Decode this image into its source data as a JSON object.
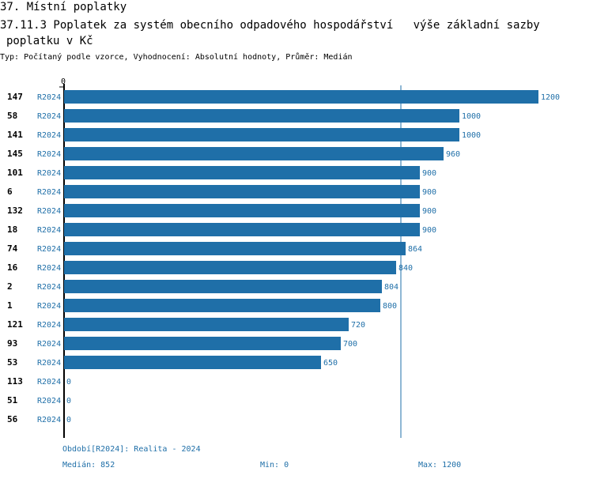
{
  "title_line1": "37. Místní poplatky",
  "title_line2": "37.11.3 Poplatek za systém obecního odpadového hospodářství   výše základní sazby",
  "title_line3": "poplatku v Kč",
  "subtitle": "Typ: Počítaný podle vzorce, Vyhodnocení: Absolutní hodnoty, Průměr: Medián",
  "chart_data": {
    "type": "bar",
    "orientation": "horizontal",
    "axis_zero_label": "0",
    "xlim": [
      0,
      1200
    ],
    "median_line": 852,
    "series_label": "R2024",
    "categories": [
      "147",
      "58",
      "141",
      "145",
      "101",
      "6",
      "132",
      "18",
      "74",
      "16",
      "2",
      "1",
      "121",
      "93",
      "53",
      "113",
      "51",
      "56"
    ],
    "values": [
      1200,
      1000,
      1000,
      960,
      900,
      900,
      900,
      900,
      864,
      840,
      804,
      800,
      720,
      700,
      650,
      0,
      0,
      0
    ]
  },
  "footer": {
    "period": "Období[R2024]: Realita - 2024",
    "median": "Medián: 852",
    "min": "Min: 0",
    "max": "Max: 1200"
  },
  "colors": {
    "bar": "#1f6fa8",
    "text_blue": "#1f6fa8",
    "axis": "#000000"
  }
}
